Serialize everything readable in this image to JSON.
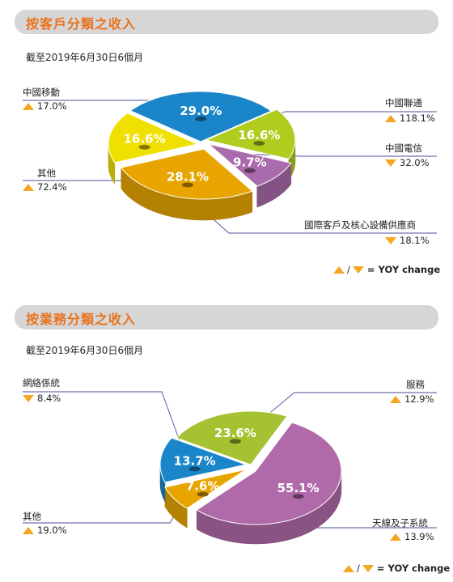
{
  "sections": [
    {
      "title": "按客戶分類之收入",
      "subtitle": "截至2019年6月30日6個月",
      "legend": "= YOY change"
    },
    {
      "title": "按業務分類之收入",
      "subtitle": "截至2019年6月30日6個月",
      "legend": "= YOY change"
    }
  ],
  "chart_data": [
    {
      "type": "pie",
      "title": "按客戶分類之收入",
      "subtitle": "截至2019年6月30日6個月",
      "slices": [
        {
          "label": "中國移動",
          "value": 29.0,
          "value_label": "29.0%",
          "yoy": "17.0%",
          "yoy_dir": "up",
          "color": "#1a86c9"
        },
        {
          "label": "中國聯通",
          "value": 16.6,
          "value_label": "16.6%",
          "yoy": "118.1%",
          "yoy_dir": "up",
          "color": "#b2cb1f"
        },
        {
          "label": "中國電信",
          "value": 9.7,
          "value_label": "9.7%",
          "yoy": "32.0%",
          "yoy_dir": "down",
          "color": "#a96bab"
        },
        {
          "label": "國際客戶及核心設備供應商",
          "value": 28.1,
          "value_label": "28.1%",
          "yoy": "18.1%",
          "yoy_dir": "down",
          "color": "#e8a500"
        },
        {
          "label": "其他",
          "value": 16.6,
          "value_label": "16.6%",
          "yoy": "72.4%",
          "yoy_dir": "up",
          "color": "#f0e000"
        }
      ]
    },
    {
      "type": "pie",
      "title": "按業務分類之收入",
      "subtitle": "截至2019年6月30日6個月",
      "slices": [
        {
          "label": "服務",
          "value": 23.6,
          "value_label": "23.6%",
          "yoy": "12.9%",
          "yoy_dir": "up",
          "color": "#a5c232"
        },
        {
          "label": "天線及子系統",
          "value": 55.1,
          "value_label": "55.1%",
          "yoy": "13.9%",
          "yoy_dir": "up",
          "color": "#b06aa9"
        },
        {
          "label": "其他",
          "value": 7.6,
          "value_label": "7.6%",
          "yoy": "19.0%",
          "yoy_dir": "up",
          "color": "#e8a500"
        },
        {
          "label": "網絡係統",
          "value": 13.7,
          "value_label": "13.7%",
          "yoy": "8.4%",
          "yoy_dir": "down",
          "color": "#1a86c9"
        }
      ]
    }
  ]
}
